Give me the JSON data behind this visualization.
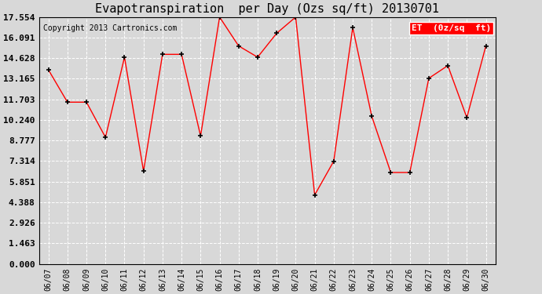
{
  "title": "Evapotranspiration  per Day (Ozs sq/ft) 20130701",
  "copyright": "Copyright 2013 Cartronics.com",
  "legend_label": "ET  (0z/sq  ft)",
  "dates": [
    "06/07",
    "06/08",
    "06/09",
    "06/10",
    "06/11",
    "06/12",
    "06/13",
    "06/14",
    "06/15",
    "06/16",
    "06/17",
    "06/18",
    "06/19",
    "06/20",
    "06/21",
    "06/22",
    "06/23",
    "06/24",
    "06/25",
    "06/26",
    "06/27",
    "06/28",
    "06/29",
    "06/30"
  ],
  "values": [
    13.8,
    11.5,
    11.5,
    9.0,
    14.7,
    6.6,
    14.9,
    14.9,
    9.1,
    17.55,
    15.5,
    14.7,
    16.4,
    17.55,
    4.9,
    7.3,
    16.8,
    10.5,
    6.5,
    6.5,
    13.2,
    14.1,
    10.4,
    15.5
  ],
  "y_ticks": [
    0.0,
    1.463,
    2.926,
    4.388,
    5.851,
    7.314,
    8.777,
    10.24,
    11.703,
    13.165,
    14.628,
    16.091,
    17.554
  ],
  "ymax": 17.554,
  "ymin": 0.0,
  "line_color": "red",
  "marker_color": "black",
  "bg_color": "#d8d8d8",
  "grid_color": "white",
  "legend_bg": "red",
  "legend_text_color": "white",
  "title_fontsize": 11,
  "copyright_fontsize": 7,
  "tick_fontsize": 7,
  "y_tick_fontsize": 8
}
